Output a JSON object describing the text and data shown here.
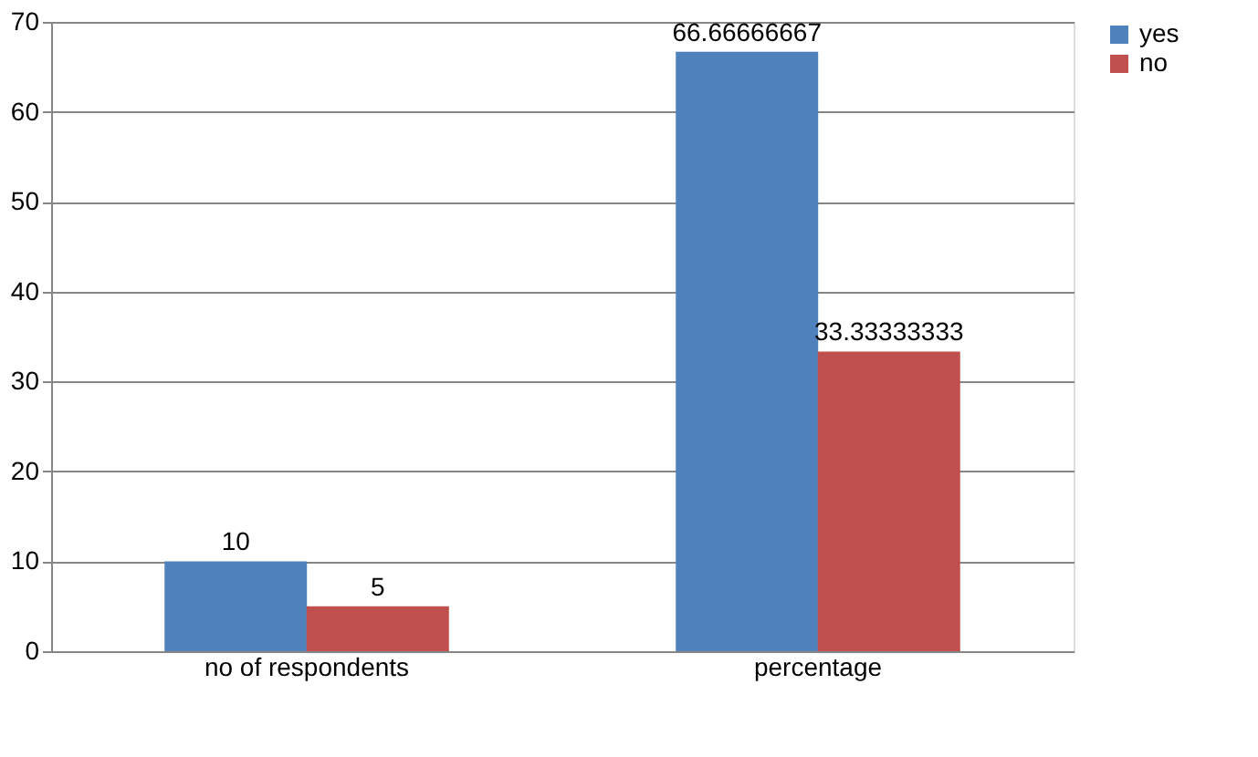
{
  "chart_data": {
    "type": "bar",
    "categories": [
      "no of respondents",
      "percentage"
    ],
    "series": [
      {
        "name": "yes",
        "color": "#4f81bd",
        "values": [
          10,
          66.66666667
        ]
      },
      {
        "name": "no",
        "color": "#c0504d",
        "values": [
          5,
          33.33333333
        ]
      }
    ],
    "ylim": [
      0,
      70
    ],
    "yticks": [
      0,
      10,
      20,
      30,
      40,
      50,
      60,
      70
    ],
    "grid": "y",
    "legend": "right",
    "data_labels": true
  }
}
